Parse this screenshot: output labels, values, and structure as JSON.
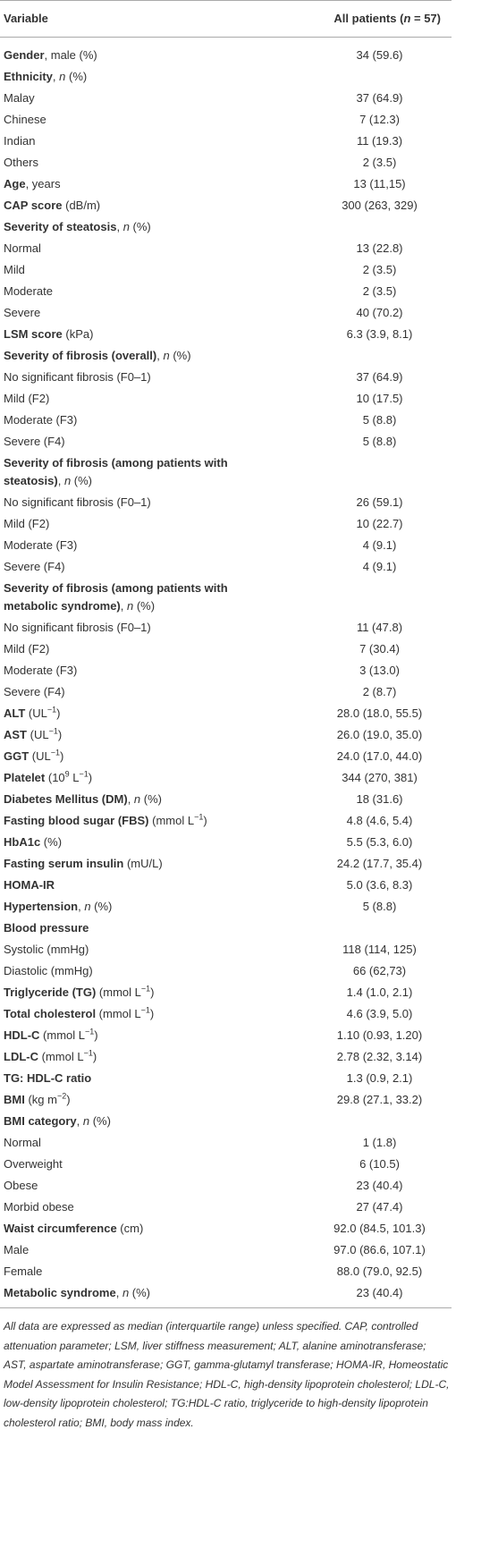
{
  "table": {
    "header": [
      [
        [
          "Variable"
        ]
      ],
      [
        [
          "All patients ("
        ],
        [
          "n",
          "i"
        ],
        [
          " = 57)"
        ]
      ]
    ],
    "rows": [
      {
        "label": [
          [
            "Gender",
            "b"
          ],
          [
            ", male (%)"
          ]
        ],
        "value": "34 (59.6)"
      },
      {
        "label": [
          [
            "Ethnicity",
            "b"
          ],
          [
            ", "
          ],
          [
            "n",
            "i"
          ],
          [
            " (%)"
          ]
        ],
        "value": null
      },
      {
        "label": [
          [
            "Malay"
          ]
        ],
        "value": "37 (64.9)"
      },
      {
        "label": [
          [
            "Chinese"
          ]
        ],
        "value": "7 (12.3)"
      },
      {
        "label": [
          [
            "Indian"
          ]
        ],
        "value": "11 (19.3)"
      },
      {
        "label": [
          [
            "Others"
          ]
        ],
        "value": "2 (3.5)"
      },
      {
        "label": [
          [
            "Age",
            "b"
          ],
          [
            ", years"
          ]
        ],
        "value": "13 (11,15)"
      },
      {
        "label": [
          [
            "CAP score",
            "b"
          ],
          [
            " (dB/m)"
          ]
        ],
        "value": "300 (263, 329)"
      },
      {
        "label": [
          [
            "Severity of steatosis",
            "b"
          ],
          [
            ", "
          ],
          [
            "n",
            "i"
          ],
          [
            " (%)"
          ]
        ],
        "value": null
      },
      {
        "label": [
          [
            "Normal"
          ]
        ],
        "value": "13 (22.8)"
      },
      {
        "label": [
          [
            "Mild"
          ]
        ],
        "value": "2 (3.5)"
      },
      {
        "label": [
          [
            "Moderate"
          ]
        ],
        "value": "2 (3.5)"
      },
      {
        "label": [
          [
            "Severe"
          ]
        ],
        "value": "40 (70.2)"
      },
      {
        "label": [
          [
            "LSM score",
            "b"
          ],
          [
            " (kPa)"
          ]
        ],
        "value": "6.3 (3.9, 8.1)"
      },
      {
        "label": [
          [
            "Severity of fibrosis (overall)",
            "b"
          ],
          [
            ", "
          ],
          [
            "n",
            "i"
          ],
          [
            " (%)"
          ]
        ],
        "value": null
      },
      {
        "label": [
          [
            "No significant fibrosis (F0–1)"
          ]
        ],
        "value": "37 (64.9)"
      },
      {
        "label": [
          [
            "Mild (F2)"
          ]
        ],
        "value": "10 (17.5)"
      },
      {
        "label": [
          [
            "Moderate (F3)"
          ]
        ],
        "value": "5 (8.8)"
      },
      {
        "label": [
          [
            "Severe (F4)"
          ]
        ],
        "value": "5 (8.8)"
      },
      {
        "label": [
          [
            "Severity of fibrosis (among patients with steatosis)",
            "b"
          ],
          [
            ", "
          ],
          [
            "n",
            "i"
          ],
          [
            " (%)"
          ]
        ],
        "value": null
      },
      {
        "label": [
          [
            "No significant fibrosis (F0–1)"
          ]
        ],
        "value": "26 (59.1)"
      },
      {
        "label": [
          [
            "Mild (F2)"
          ]
        ],
        "value": "10 (22.7)"
      },
      {
        "label": [
          [
            "Moderate (F3)"
          ]
        ],
        "value": "4 (9.1)"
      },
      {
        "label": [
          [
            "Severe (F4)"
          ]
        ],
        "value": "4 (9.1)"
      },
      {
        "label": [
          [
            "Severity of fibrosis (among patients with metabolic syndrome)",
            "b"
          ],
          [
            ", "
          ],
          [
            "n",
            "i"
          ],
          [
            " (%)"
          ]
        ],
        "value": null
      },
      {
        "label": [
          [
            "No significant fibrosis (F0–1)"
          ]
        ],
        "value": "11 (47.8)"
      },
      {
        "label": [
          [
            "Mild (F2)"
          ]
        ],
        "value": "7 (30.4)"
      },
      {
        "label": [
          [
            "Moderate (F3)"
          ]
        ],
        "value": "3 (13.0)"
      },
      {
        "label": [
          [
            "Severe (F4)"
          ]
        ],
        "value": "2 (8.7)"
      },
      {
        "label": [
          [
            "ALT",
            "b"
          ],
          [
            " (UL"
          ],
          [
            "−1",
            "s"
          ],
          [
            ")"
          ]
        ],
        "value": "28.0 (18.0, 55.5)"
      },
      {
        "label": [
          [
            "AST",
            "b"
          ],
          [
            " (UL"
          ],
          [
            "−1",
            "s"
          ],
          [
            ")"
          ]
        ],
        "value": "26.0 (19.0, 35.0)"
      },
      {
        "label": [
          [
            "GGT",
            "b"
          ],
          [
            " (UL"
          ],
          [
            "−1",
            "s"
          ],
          [
            ")"
          ]
        ],
        "value": "24.0 (17.0, 44.0)"
      },
      {
        "label": [
          [
            "Platelet",
            "b"
          ],
          [
            " (10"
          ],
          [
            "9",
            "s"
          ],
          [
            " L"
          ],
          [
            "−1",
            "s"
          ],
          [
            ")"
          ]
        ],
        "value": "344 (270, 381)"
      },
      {
        "label": [
          [
            "Diabetes Mellitus (DM)",
            "b"
          ],
          [
            ", "
          ],
          [
            "n",
            "i"
          ],
          [
            " (%)"
          ]
        ],
        "value": "18 (31.6)"
      },
      {
        "label": [
          [
            "Fasting blood sugar (FBS)",
            "b"
          ],
          [
            " (mmol L"
          ],
          [
            "−1",
            "s"
          ],
          [
            ")"
          ]
        ],
        "value": "4.8 (4.6, 5.4)"
      },
      {
        "label": [
          [
            "HbA1c",
            "b"
          ],
          [
            " (%)"
          ]
        ],
        "value": "5.5 (5.3, 6.0)"
      },
      {
        "label": [
          [
            "Fasting serum insulin",
            "b"
          ],
          [
            " (mU/L)"
          ]
        ],
        "value": "24.2 (17.7, 35.4)"
      },
      {
        "label": [
          [
            "HOMA-IR",
            "b"
          ]
        ],
        "value": "5.0 (3.6, 8.3)"
      },
      {
        "label": [
          [
            "Hypertension",
            "b"
          ],
          [
            ", "
          ],
          [
            "n",
            "i"
          ],
          [
            " (%)"
          ]
        ],
        "value": "5 (8.8)"
      },
      {
        "label": [
          [
            "Blood pressure",
            "b"
          ]
        ],
        "value": null
      },
      {
        "label": [
          [
            "Systolic (mmHg)"
          ]
        ],
        "value": "118 (114, 125)"
      },
      {
        "label": [
          [
            "Diastolic (mmHg)"
          ]
        ],
        "value": "66 (62,73)"
      },
      {
        "label": [
          [
            "Triglyceride (TG)",
            "b"
          ],
          [
            " (mmol L"
          ],
          [
            "−1",
            "s"
          ],
          [
            ")"
          ]
        ],
        "value": "1.4 (1.0, 2.1)"
      },
      {
        "label": [
          [
            "Total cholesterol",
            "b"
          ],
          [
            " (mmol L"
          ],
          [
            "−1",
            "s"
          ],
          [
            ")"
          ]
        ],
        "value": "4.6 (3.9, 5.0)"
      },
      {
        "label": [
          [
            "HDL-C",
            "b"
          ],
          [
            " (mmol L"
          ],
          [
            "−1",
            "s"
          ],
          [
            ")"
          ]
        ],
        "value": "1.10 (0.93, 1.20)"
      },
      {
        "label": [
          [
            "LDL-C",
            "b"
          ],
          [
            " (mmol L"
          ],
          [
            "−1",
            "s"
          ],
          [
            ")"
          ]
        ],
        "value": "2.78 (2.32, 3.14)"
      },
      {
        "label": [
          [
            "TG: HDL-C ratio",
            "b"
          ]
        ],
        "value": "1.3 (0.9, 2.1)"
      },
      {
        "label": [
          [
            "BMI",
            "b"
          ],
          [
            " (kg m"
          ],
          [
            "−2",
            "s"
          ],
          [
            ")"
          ]
        ],
        "value": "29.8 (27.1, 33.2)"
      },
      {
        "label": [
          [
            "BMI category",
            "b"
          ],
          [
            ", "
          ],
          [
            "n",
            "i"
          ],
          [
            " (%)"
          ]
        ],
        "value": null
      },
      {
        "label": [
          [
            "Normal"
          ]
        ],
        "value": "1 (1.8)"
      },
      {
        "label": [
          [
            "Overweight"
          ]
        ],
        "value": "6 (10.5)"
      },
      {
        "label": [
          [
            "Obese"
          ]
        ],
        "value": "23 (40.4)"
      },
      {
        "label": [
          [
            "Morbid obese"
          ]
        ],
        "value": "27 (47.4)"
      },
      {
        "label": [
          [
            "Waist circumference",
            "b"
          ],
          [
            " (cm)"
          ]
        ],
        "value": "92.0 (84.5, 101.3)"
      },
      {
        "label": [
          [
            "Male"
          ]
        ],
        "value": "97.0 (86.6, 107.1)"
      },
      {
        "label": [
          [
            "Female"
          ]
        ],
        "value": "88.0 (79.0, 92.5)"
      },
      {
        "label": [
          [
            "Metabolic syndrome",
            "b"
          ],
          [
            ", "
          ],
          [
            "n",
            "i"
          ],
          [
            " (%)"
          ]
        ],
        "value": "23 (40.4)"
      }
    ],
    "footnote": "All data are expressed as median (interquartile range) unless specified. CAP, controlled attenuation parameter; LSM, liver stiffness measurement; ALT, alanine aminotransferase; AST, aspartate aminotransferase; GGT, gamma-glutamyl transferase; HOMA-IR, Homeostatic Model Assessment for Insulin Resistance; HDL-C, high-density lipoprotein cholesterol; LDL-C, low-density lipoprotein cholesterol; TG:HDL-C ratio, triglyceride to high-density lipoprotein cholesterol ratio; BMI, body mass index."
  }
}
